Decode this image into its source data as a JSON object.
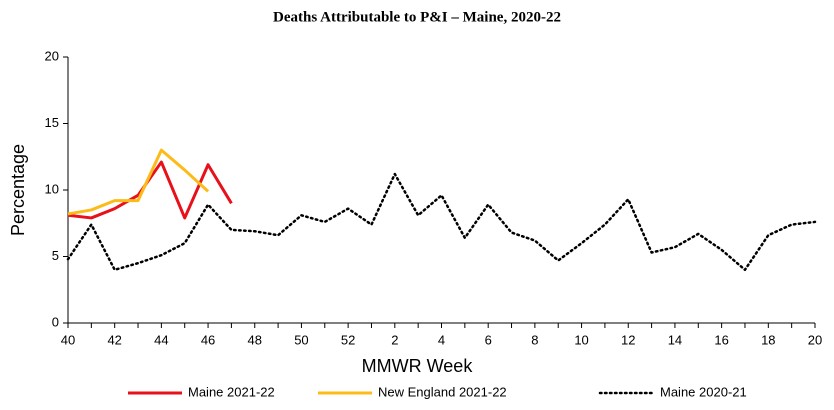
{
  "chart_data": {
    "type": "line",
    "title": "Deaths Attributable to P&I – Maine, 2020-22",
    "x_label": "MMWR Week",
    "y_label": "Percentage",
    "categories": [
      40,
      null,
      42,
      null,
      44,
      null,
      46,
      null,
      48,
      null,
      50,
      null,
      52,
      null,
      2,
      null,
      4,
      null,
      6,
      null,
      8,
      null,
      10,
      null,
      12,
      null,
      14,
      null,
      16,
      null,
      18,
      null,
      20
    ],
    "series": [
      {
        "name": "Maine 2021-22",
        "color": "#e8101a",
        "style": "solid",
        "values": [
          8.1,
          7.9,
          8.6,
          9.6,
          12.1,
          7.9,
          11.9,
          9.0,
          null,
          null,
          null,
          null,
          null,
          null,
          null,
          null,
          null,
          null,
          null,
          null,
          null,
          null,
          null,
          null,
          null,
          null,
          null,
          null,
          null,
          null,
          null,
          null,
          null
        ]
      },
      {
        "name": "New England 2021-22",
        "color": "#fdbb1a",
        "style": "solid",
        "values": [
          8.2,
          8.5,
          9.2,
          9.2,
          13.0,
          11.5,
          9.9,
          null,
          null,
          null,
          null,
          null,
          null,
          null,
          null,
          null,
          null,
          null,
          null,
          null,
          null,
          null,
          null,
          null,
          null,
          null,
          null,
          null,
          null,
          null,
          null,
          null,
          null
        ]
      },
      {
        "name": "Maine 2020-21",
        "color": "#000000",
        "style": "dotted",
        "values": [
          4.8,
          7.4,
          4.0,
          4.5,
          5.1,
          6.0,
          8.9,
          7.0,
          6.9,
          6.6,
          8.1,
          7.6,
          8.6,
          7.4,
          11.2,
          8.1,
          9.6,
          6.4,
          8.9,
          6.8,
          6.2,
          4.7,
          6.0,
          7.4,
          9.3,
          5.3,
          5.7,
          6.7,
          5.5,
          4.0,
          6.6,
          7.4,
          7.6
        ]
      }
    ],
    "ylim": [
      0,
      20
    ],
    "yticks": [
      0,
      5,
      10,
      15,
      20
    ],
    "grid": false,
    "legend": "bottom"
  }
}
